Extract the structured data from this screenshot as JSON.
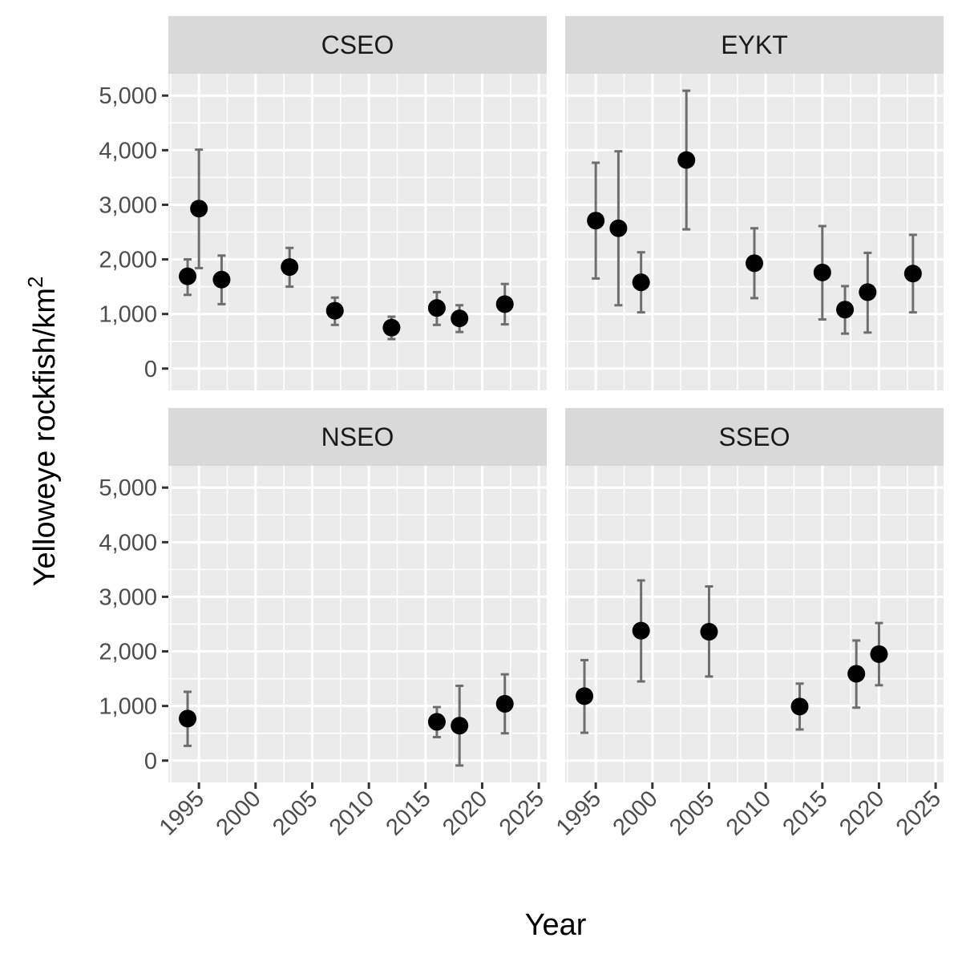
{
  "chart_data": {
    "type": "scatter",
    "subtype": "faceted scatter with error bars",
    "xlabel": "Year",
    "ylabel": "Yelloweye rockfish/km",
    "ylabel_superscript": "2",
    "xlim": [
      1992.3,
      2025.7
    ],
    "ylim": [
      -400,
      5400
    ],
    "x_ticks": [
      1995,
      2000,
      2005,
      2010,
      2015,
      2020,
      2025
    ],
    "x_tick_labels": [
      "1995",
      "2000",
      "2005",
      "2010",
      "2015",
      "2020",
      "2025"
    ],
    "y_ticks": [
      0,
      1000,
      2000,
      3000,
      4000,
      5000
    ],
    "y_tick_labels": [
      "0",
      "1,000",
      "2,000",
      "3,000",
      "4,000",
      "5,000"
    ],
    "grid": true,
    "colors": {
      "panel": "#EBEBEB",
      "strip": "#D9D9D9",
      "point": "#000000",
      "errorbar": "#6E6E6E"
    },
    "facets": [
      {
        "name": "CSEO",
        "points": [
          {
            "x": 1994,
            "y": 1690,
            "ymin": 1350,
            "ymax": 2000
          },
          {
            "x": 1995,
            "y": 2930,
            "ymin": 1840,
            "ymax": 4010
          },
          {
            "x": 1997,
            "y": 1630,
            "ymin": 1180,
            "ymax": 2070
          },
          {
            "x": 2003,
            "y": 1860,
            "ymin": 1500,
            "ymax": 2210
          },
          {
            "x": 2007,
            "y": 1060,
            "ymin": 800,
            "ymax": 1300
          },
          {
            "x": 2012,
            "y": 750,
            "ymin": 540,
            "ymax": 950
          },
          {
            "x": 2016,
            "y": 1110,
            "ymin": 800,
            "ymax": 1400
          },
          {
            "x": 2018,
            "y": 920,
            "ymin": 670,
            "ymax": 1160
          },
          {
            "x": 2022,
            "y": 1180,
            "ymin": 810,
            "ymax": 1550
          }
        ]
      },
      {
        "name": "EYKT",
        "points": [
          {
            "x": 1995,
            "y": 2710,
            "ymin": 1650,
            "ymax": 3770
          },
          {
            "x": 1997,
            "y": 2570,
            "ymin": 1160,
            "ymax": 3980
          },
          {
            "x": 1999,
            "y": 1580,
            "ymin": 1030,
            "ymax": 2130
          },
          {
            "x": 2003,
            "y": 3820,
            "ymin": 2550,
            "ymax": 5090
          },
          {
            "x": 2009,
            "y": 1930,
            "ymin": 1290,
            "ymax": 2570
          },
          {
            "x": 2015,
            "y": 1760,
            "ymin": 900,
            "ymax": 2610
          },
          {
            "x": 2017,
            "y": 1080,
            "ymin": 640,
            "ymax": 1510
          },
          {
            "x": 2019,
            "y": 1400,
            "ymin": 660,
            "ymax": 2120
          },
          {
            "x": 2023,
            "y": 1740,
            "ymin": 1030,
            "ymax": 2450
          }
        ]
      },
      {
        "name": "NSEO",
        "points": [
          {
            "x": 1994,
            "y": 770,
            "ymin": 270,
            "ymax": 1260
          },
          {
            "x": 2016,
            "y": 710,
            "ymin": 430,
            "ymax": 980
          },
          {
            "x": 2018,
            "y": 640,
            "ymin": -90,
            "ymax": 1370
          },
          {
            "x": 2022,
            "y": 1040,
            "ymin": 500,
            "ymax": 1580
          }
        ]
      },
      {
        "name": "SSEO",
        "points": [
          {
            "x": 1994,
            "y": 1180,
            "ymin": 510,
            "ymax": 1840
          },
          {
            "x": 1999,
            "y": 2380,
            "ymin": 1450,
            "ymax": 3300
          },
          {
            "x": 2005,
            "y": 2360,
            "ymin": 1540,
            "ymax": 3190
          },
          {
            "x": 2013,
            "y": 990,
            "ymin": 570,
            "ymax": 1410
          },
          {
            "x": 2018,
            "y": 1590,
            "ymin": 970,
            "ymax": 2200
          },
          {
            "x": 2020,
            "y": 1950,
            "ymin": 1380,
            "ymax": 2520
          }
        ]
      }
    ]
  }
}
